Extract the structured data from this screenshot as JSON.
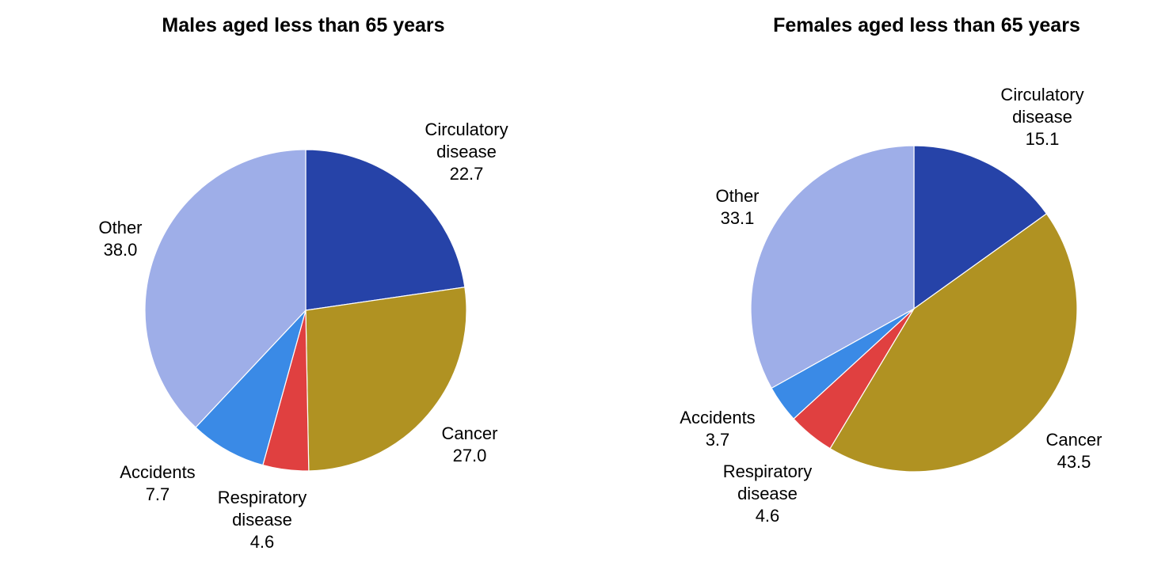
{
  "chart_data": [
    {
      "type": "pie",
      "title": "Males aged less than 65 years",
      "slices": [
        {
          "label": [
            "Circulatory",
            "disease"
          ],
          "value": 22.7,
          "value_text": "22.7",
          "color": "#2643a8"
        },
        {
          "label": [
            "Cancer"
          ],
          "value": 27.0,
          "value_text": "27.0",
          "color": "#b09222"
        },
        {
          "label": [
            "Respiratory",
            "disease"
          ],
          "value": 4.6,
          "value_text": "4.6",
          "color": "#e04040"
        },
        {
          "label": [
            "Accidents"
          ],
          "value": 7.7,
          "value_text": "7.7",
          "color": "#3a8ae6"
        },
        {
          "label": [
            "Other"
          ],
          "value": 38.0,
          "value_text": "38.0",
          "color": "#9eaee8"
        }
      ]
    },
    {
      "type": "pie",
      "title": "Females aged less than 65 years",
      "slices": [
        {
          "label": [
            "Circulatory",
            "disease"
          ],
          "value": 15.1,
          "value_text": "15.1",
          "color": "#2643a8"
        },
        {
          "label": [
            "Cancer"
          ],
          "value": 43.5,
          "value_text": "43.5",
          "color": "#b09222"
        },
        {
          "label": [
            "Respiratory",
            "disease"
          ],
          "value": 4.6,
          "value_text": "4.6",
          "color": "#e04040"
        },
        {
          "label": [
            "Accidents"
          ],
          "value": 3.7,
          "value_text": "3.7",
          "color": "#3a8ae6"
        },
        {
          "label": [
            "Other"
          ],
          "value": 33.1,
          "value_text": "33.1",
          "color": "#9eaee8"
        }
      ]
    }
  ]
}
